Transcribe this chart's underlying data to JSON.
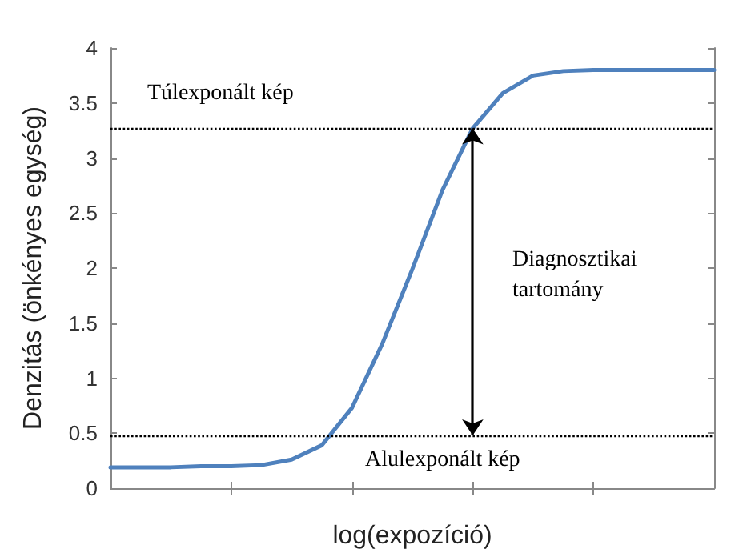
{
  "chart_data": {
    "type": "line",
    "xlabel": "log(expozíció)",
    "ylabel": "Denzitás (önkényes egység)",
    "categories": [
      null,
      null,
      null,
      null,
      null,
      null,
      null,
      null,
      null,
      null,
      null,
      null,
      null,
      null,
      null,
      null,
      null,
      null,
      null,
      null,
      null
    ],
    "series": [
      {
        "color": "#4f81bd",
        "values": [
          0.19,
          0.19,
          0.19,
          0.2,
          0.2,
          0.21,
          0.26,
          0.39,
          0.73,
          1.31,
          1.99,
          2.71,
          3.27,
          3.59,
          3.75,
          3.79,
          3.8,
          3.8,
          3.8,
          3.8,
          3.8
        ]
      }
    ],
    "ylim": [
      0,
      4
    ],
    "yticks": [
      0,
      0.5,
      1,
      1.5,
      2,
      2.5,
      3,
      3.5,
      4
    ],
    "tick_labels": "y",
    "grid": false,
    "marker": "none",
    "line_style": "solid",
    "ref_lines": [
      {
        "axis": "y",
        "value": 3.27,
        "color": "#000000",
        "line_style": "dotted"
      },
      {
        "axis": "y",
        "value": 0.48,
        "color": "#000000",
        "line_style": "dotted"
      }
    ],
    "annotations": [
      "Túlexponált kép",
      "Alulexponált kép",
      "Diagnosztikai tartomány"
    ]
  }
}
